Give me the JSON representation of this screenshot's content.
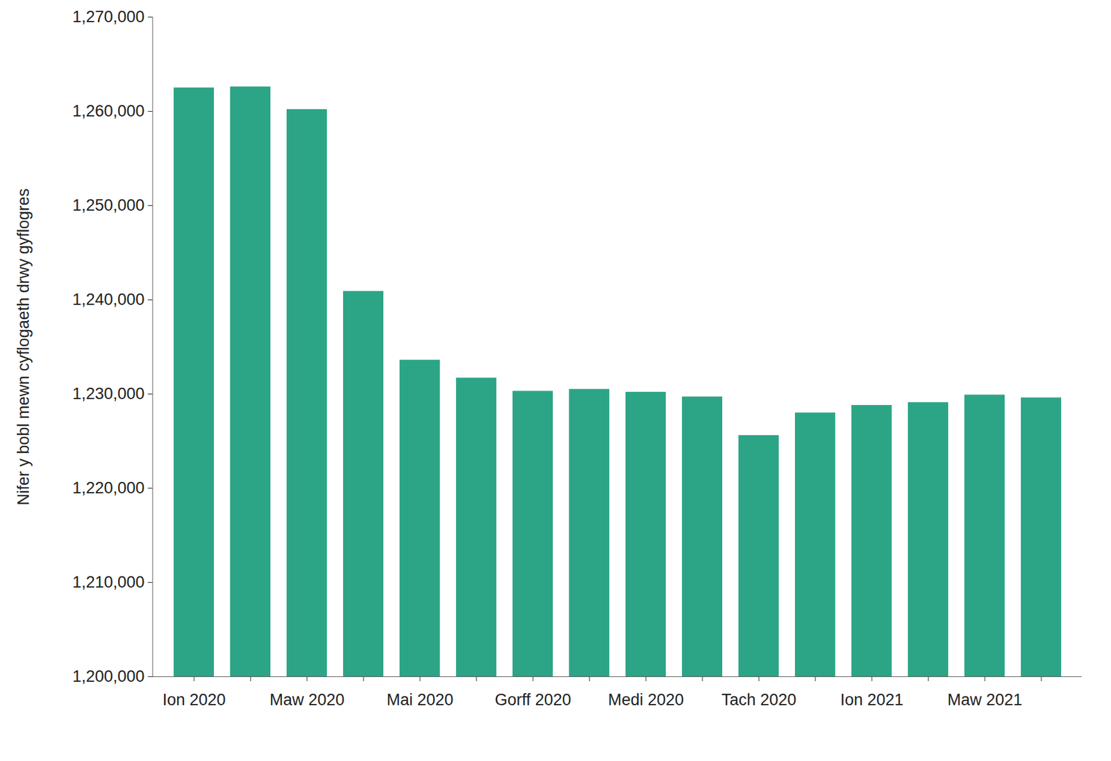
{
  "chart_data": {
    "type": "bar",
    "y_label": "Nifer y bobl mewn cyflogaeth drwy gyflogres",
    "categories": [
      "Ion 2020",
      null,
      "Maw 2020",
      null,
      "Mai 2020",
      null,
      "Gorff 2020",
      null,
      "Medi 2020",
      null,
      "Tach 2020",
      null,
      "Ion 2021",
      null,
      "Maw 2021",
      null
    ],
    "values": [
      1262500,
      1262600,
      1260200,
      1240900,
      1233600,
      1231700,
      1230300,
      1230500,
      1230200,
      1229700,
      1225600,
      1228000,
      1228800,
      1229100,
      1229900,
      1229600
    ],
    "color": "#2ca586",
    "ylim": [
      1200000,
      1270000
    ],
    "yticks": [
      {
        "value": 1200000,
        "label": "1,200,000"
      },
      {
        "value": 1210000,
        "label": "1,210,000"
      },
      {
        "value": 1220000,
        "label": "1,220,000"
      },
      {
        "value": 1230000,
        "label": "1,230,000"
      },
      {
        "value": 1240000,
        "label": "1,240,000"
      },
      {
        "value": 1250000,
        "label": "1,250,000"
      },
      {
        "value": 1260000,
        "label": "1,260,000"
      },
      {
        "value": 1270000,
        "label": "1,270,000"
      }
    ],
    "grid": false
  }
}
